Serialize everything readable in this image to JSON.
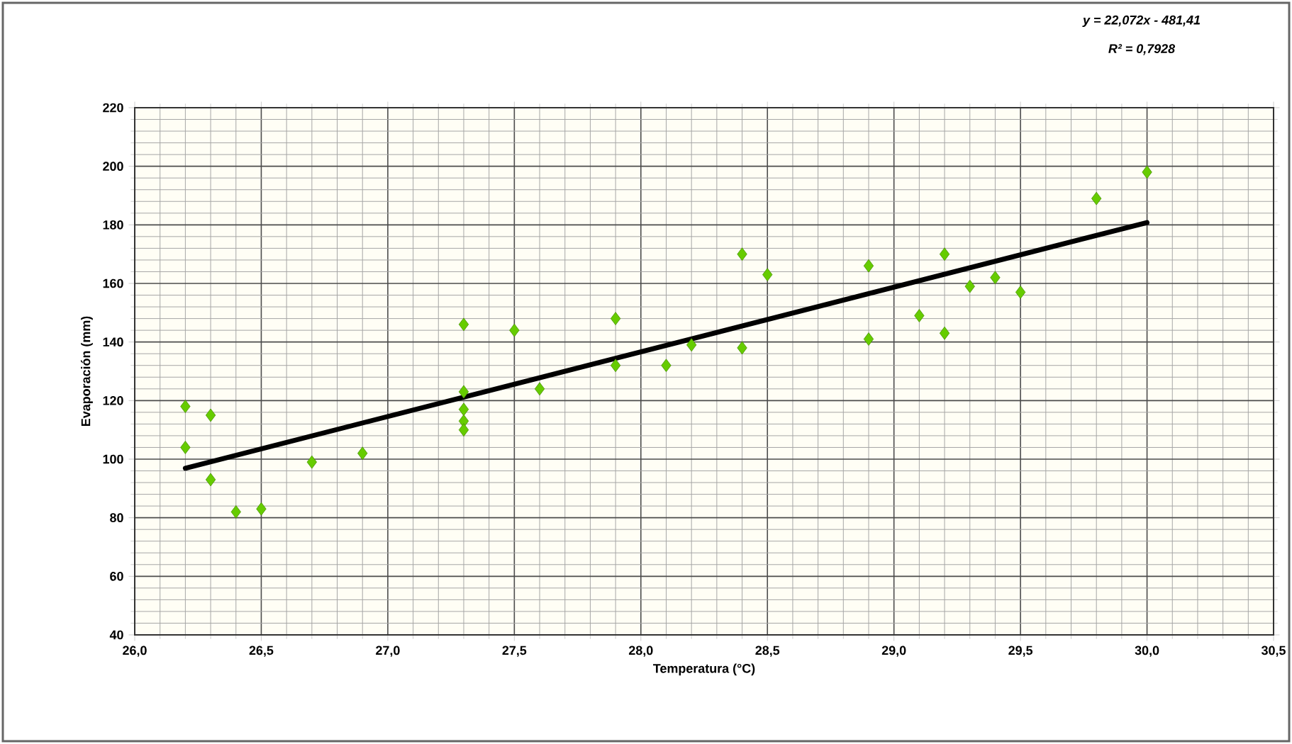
{
  "chart_data": {
    "type": "scatter",
    "xlabel": "Temperatura (°C)",
    "ylabel": "Evaporación  (mm)",
    "annotations": [
      "y = 22,072x - 481,41",
      "R² = 0,7928"
    ],
    "xlim": [
      26.0,
      30.5
    ],
    "xticks": [
      {
        "value": 26.0,
        "label": "26,0"
      },
      {
        "value": 26.5,
        "label": "26,5"
      },
      {
        "value": 27.0,
        "label": "27,0"
      },
      {
        "value": 27.5,
        "label": "27,5"
      },
      {
        "value": 28.0,
        "label": "28,0"
      },
      {
        "value": 28.5,
        "label": "28,5"
      },
      {
        "value": 29.0,
        "label": "29,0"
      },
      {
        "value": 29.5,
        "label": "29,5"
      },
      {
        "value": 30.0,
        "label": "30,0"
      },
      {
        "value": 30.5,
        "label": "30,5"
      }
    ],
    "ylim": [
      40,
      220
    ],
    "yticks": [
      40,
      60,
      80,
      100,
      120,
      140,
      160,
      180,
      200,
      220
    ],
    "grid": true,
    "series": [
      {
        "marker": "diamond",
        "color": "#66cc00",
        "x": [
          26.2,
          26.2,
          26.3,
          26.3,
          26.4,
          26.5,
          26.7,
          26.9,
          27.3,
          27.3,
          27.3,
          27.3,
          27.3,
          27.5,
          27.6,
          27.9,
          27.9,
          28.1,
          28.2,
          28.4,
          28.4,
          28.5,
          28.9,
          28.9,
          29.1,
          29.2,
          29.2,
          29.3,
          29.4,
          29.5,
          29.8,
          30.0
        ],
        "values": [
          118,
          104,
          115,
          93,
          82,
          83,
          99,
          102,
          146,
          123,
          117,
          113,
          110,
          144,
          124,
          148,
          132,
          132,
          139,
          170,
          138,
          163,
          166,
          141,
          149,
          170,
          143,
          159,
          162,
          157,
          189,
          198
        ]
      },
      {
        "type": "line",
        "marker": "none",
        "color": "#000000",
        "x": [
          26.2,
          30.0
        ],
        "values": [
          96.9,
          180.8
        ]
      }
    ]
  }
}
